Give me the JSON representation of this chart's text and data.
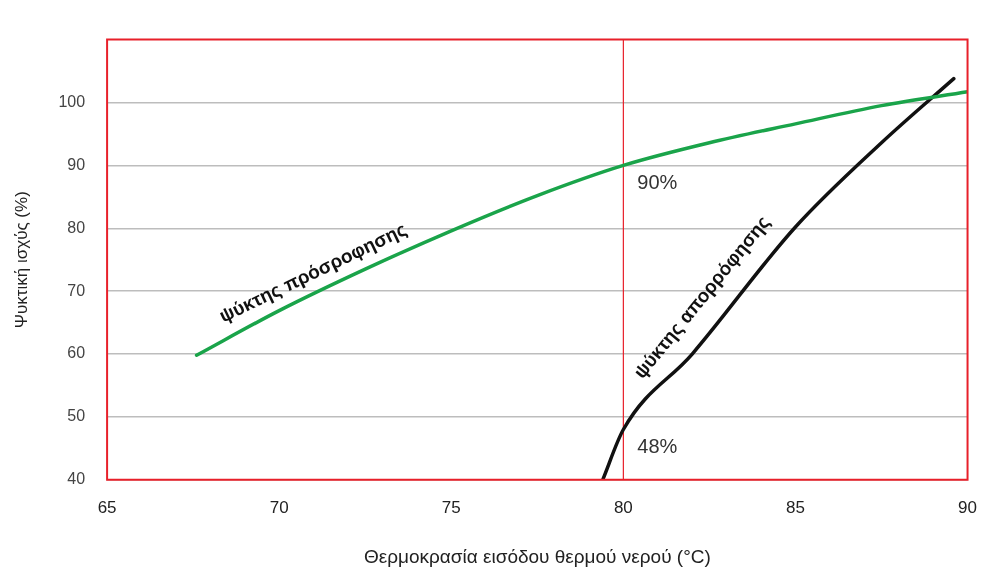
{
  "chart_data": {
    "type": "line",
    "xlabel": "Θερμοκρασία εισόδου θερμού νερού (°C)",
    "ylabel": "Ψυκτική ισχύς (%)",
    "series": [
      {
        "name": "ψύκτης πρόσροφησης",
        "color": "#1aa44a",
        "x": [
          67.6,
          70,
          72.5,
          75,
          77.5,
          80,
          82.5,
          85,
          87.5,
          90
        ],
        "values": [
          59.8,
          66.9,
          73.5,
          79.6,
          85.2,
          90,
          93.6,
          96.6,
          99.5,
          101.7
        ]
      },
      {
        "name": "ψύκτης απορρόφησης",
        "color": "#111111",
        "x": [
          79.4,
          80,
          82,
          85,
          87.5,
          89.6
        ],
        "values": [
          40,
          48,
          60,
          80.2,
          93.6,
          103.8
        ]
      }
    ],
    "xlim": [
      65,
      90
    ],
    "xticks": [
      65,
      70,
      75,
      80,
      85,
      90
    ],
    "ylim": [
      40,
      110
    ],
    "yticks": [
      40,
      50,
      60,
      70,
      80,
      90,
      100
    ],
    "grid": "y",
    "legend": false,
    "ref_lines": [
      {
        "axis": "x",
        "value": 80,
        "color": "#e8202a"
      }
    ],
    "annotations": [
      {
        "text": "90%",
        "x": 80,
        "y": 90
      },
      {
        "text": "48%",
        "x": 80,
        "y": 48
      }
    ]
  }
}
